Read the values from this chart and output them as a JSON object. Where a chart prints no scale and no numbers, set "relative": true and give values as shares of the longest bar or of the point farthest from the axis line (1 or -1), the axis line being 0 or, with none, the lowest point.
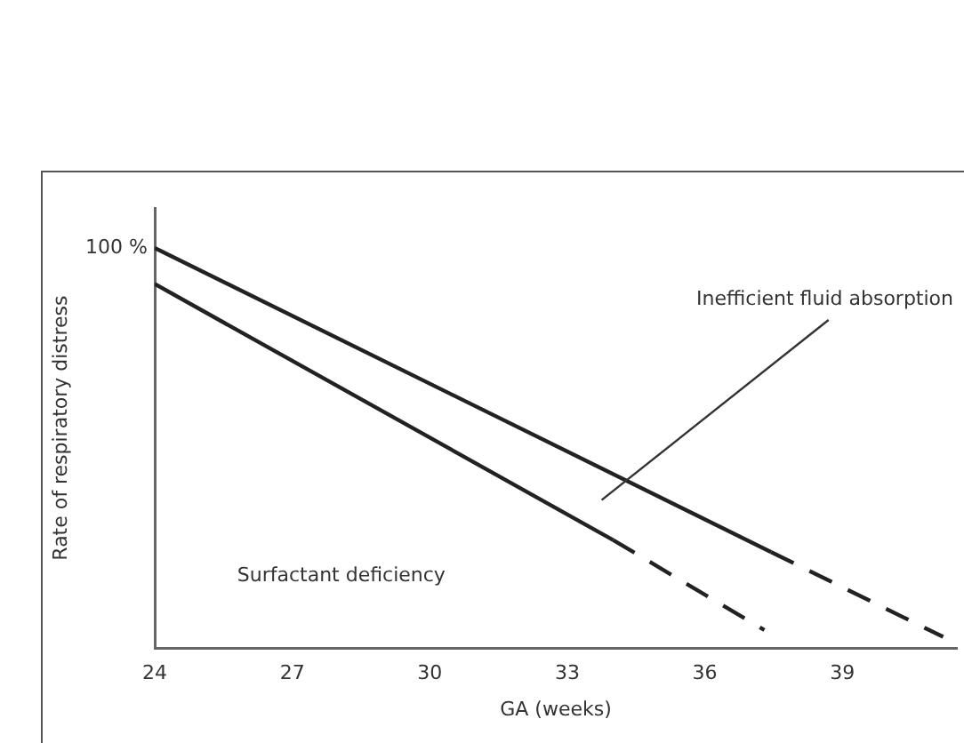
{
  "chart_data": {
    "type": "line",
    "relative": true,
    "xlabel": "GA (weeks)",
    "ylabel": "Rate of respiratory distress",
    "xlim": [
      24,
      41.5
    ],
    "xticks": [
      24,
      27,
      30,
      33,
      36,
      39
    ],
    "grid": false,
    "legend": false,
    "marker": "none",
    "series": [
      {
        "color": "#222222",
        "line_style": "solid",
        "x": [
          24,
          37.45
        ],
        "values": [
          1,
          0.24
        ]
      },
      {
        "color": "#222222",
        "line_style": "dashed",
        "x": [
          37.45,
          41.2
        ],
        "values": [
          0.24,
          0.028
        ]
      },
      {
        "color": "#222222",
        "line_style": "solid",
        "x": [
          24,
          34.0
        ],
        "values": [
          0.91,
          0.27
        ]
      },
      {
        "color": "#222222",
        "line_style": "dashed",
        "x": [
          34.0,
          37.3
        ],
        "values": [
          0.27,
          0.045
        ]
      }
    ],
    "annotations": [
      "100 %",
      "Inefficient fluid absorption",
      "Surfactant deficiency"
    ]
  }
}
